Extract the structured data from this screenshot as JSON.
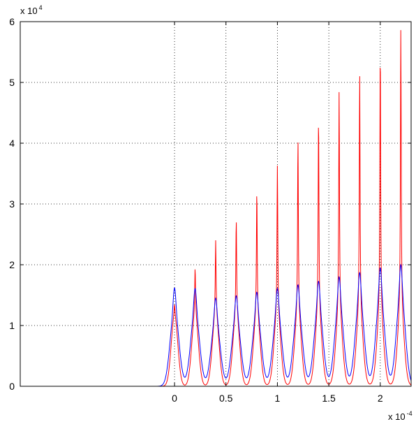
{
  "chart_data": {
    "type": "line",
    "title": "",
    "xlabel": "",
    "ylabel": "",
    "grid": true,
    "xlim": [
      -0.00015,
      0.00023
    ],
    "ylim": [
      0,
      60000
    ],
    "x_ticks": [
      0,
      5e-05,
      0.0001,
      0.00015,
      0.0002
    ],
    "x_tick_labels": [
      "0",
      "0.5",
      "1",
      "1.5",
      "2"
    ],
    "y_ticks": [
      0,
      10000,
      20000,
      30000,
      40000,
      50000,
      60000
    ],
    "y_tick_labels": [
      "0",
      "1",
      "2",
      "3",
      "4",
      "5",
      "6"
    ],
    "x_multiplier_base": "x 10",
    "x_multiplier_exp": "-4",
    "y_multiplier_base": "x 10",
    "y_multiplier_exp": "4",
    "series": [
      {
        "color": "#ff0000",
        "peak_x": [
          0,
          2e-05,
          4e-05,
          6e-05,
          8e-05,
          0.0001,
          0.00012,
          0.00014,
          0.00016,
          0.00018,
          0.0002,
          0.00022
        ],
        "peak_y": [
          13500,
          19500,
          24000,
          27500,
          32200,
          36300,
          40800,
          44500,
          48500,
          51600,
          55700,
          59000
        ]
      },
      {
        "color": "#0000ff",
        "peak_x": [
          0,
          2e-05,
          4e-05,
          6e-05,
          8e-05,
          0.0001,
          0.00012,
          0.00014,
          0.00016,
          0.00018,
          0.0002,
          0.00022
        ],
        "peak_y": [
          16200,
          16100,
          14500,
          14900,
          15500,
          16100,
          16700,
          17300,
          18000,
          18700,
          19500,
          20000
        ]
      }
    ]
  }
}
